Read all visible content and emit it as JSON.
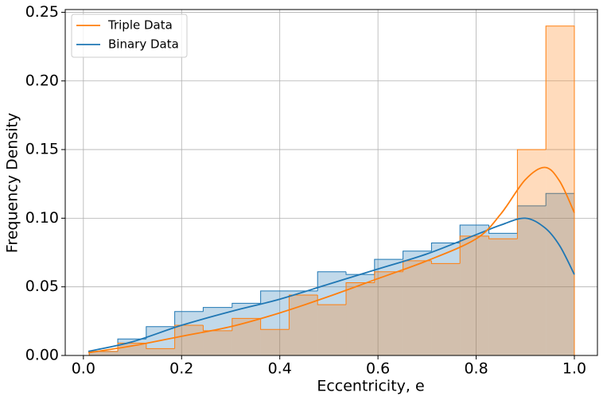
{
  "chart_data": {
    "type": "histogram",
    "xlabel": "Eccentricity, e",
    "ylabel": "Frequency Density",
    "bins": [
      0.012,
      0.07,
      0.128,
      0.186,
      0.244,
      0.303,
      0.361,
      0.419,
      0.477,
      0.535,
      0.593,
      0.651,
      0.709,
      0.767,
      0.826,
      0.884,
      0.942,
      1.0
    ],
    "kde_x": [
      0.01,
      0.1,
      0.2,
      0.3,
      0.4,
      0.5,
      0.6,
      0.7,
      0.8,
      0.85,
      0.9,
      0.94,
      0.97,
      1.0
    ],
    "series": [
      {
        "name": "Triple Data",
        "color": "#ff7f0e",
        "values": [
          0.003,
          0.009,
          0.005,
          0.022,
          0.018,
          0.027,
          0.019,
          0.044,
          0.037,
          0.053,
          0.061,
          0.069,
          0.067,
          0.087,
          0.085,
          0.15,
          0.24
        ],
        "kde": [
          0.002,
          0.007,
          0.014,
          0.021,
          0.031,
          0.043,
          0.056,
          0.069,
          0.085,
          0.103,
          0.128,
          0.137,
          0.127,
          0.104
        ]
      },
      {
        "name": "Binary Data",
        "color": "#1f77b4",
        "values": [
          0.003,
          0.012,
          0.021,
          0.032,
          0.035,
          0.038,
          0.047,
          0.047,
          0.061,
          0.059,
          0.07,
          0.076,
          0.082,
          0.095,
          0.089,
          0.109,
          0.118
        ],
        "kde": [
          0.003,
          0.01,
          0.022,
          0.032,
          0.041,
          0.052,
          0.063,
          0.074,
          0.088,
          0.095,
          0.1,
          0.093,
          0.08,
          0.059
        ]
      }
    ],
    "xlim": [
      -0.037,
      1.047
    ],
    "ylim": [
      0,
      0.252
    ],
    "xticks": [
      {
        "value": 0,
        "label": "0.0"
      },
      0.2,
      0.4,
      0.6,
      0.8,
      {
        "value": 1,
        "label": "1.0"
      }
    ],
    "yticks": [
      {
        "value": 0,
        "label": "0.00"
      },
      0.05,
      {
        "value": 0.1,
        "label": "0.10"
      },
      0.15,
      {
        "value": 0.2,
        "label": "0.20"
      },
      0.25
    ],
    "grid": true,
    "legend": "upper-left"
  }
}
